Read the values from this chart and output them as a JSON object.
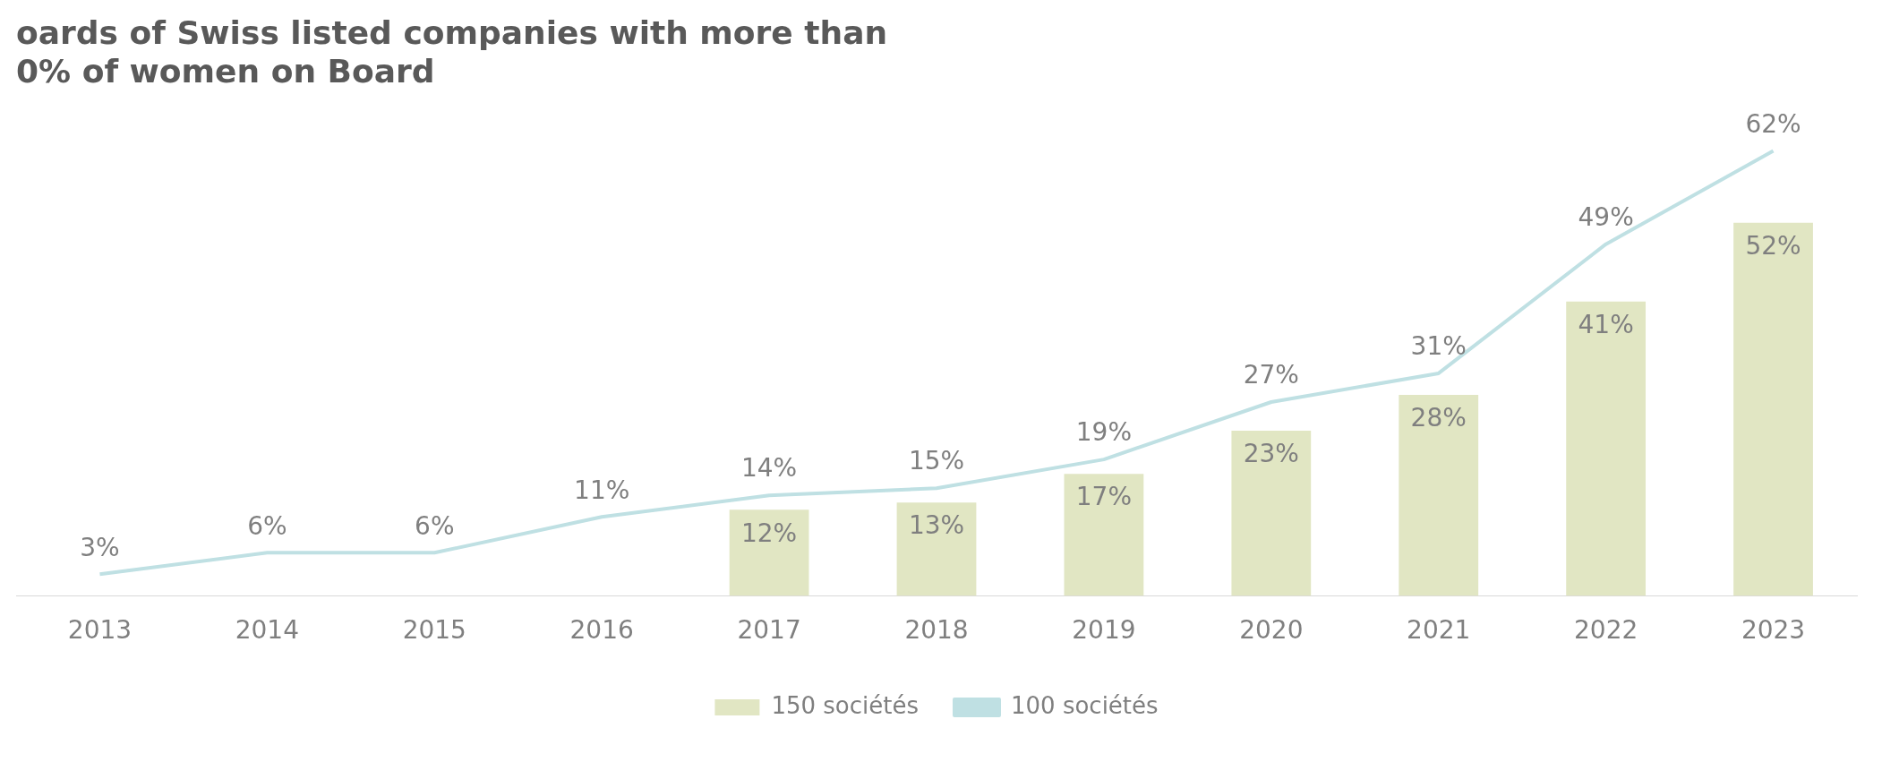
{
  "chart_data": {
    "type": "bar",
    "title": "oards of Swiss listed companies with more than\n0% of women on Board",
    "categories": [
      "2013",
      "2014",
      "2015",
      "2016",
      "2017",
      "2018",
      "2019",
      "2020",
      "2021",
      "2022",
      "2023"
    ],
    "series": [
      {
        "name": "150 sociétés",
        "color": "#e1e6c3",
        "values": [
          null,
          null,
          null,
          null,
          12,
          13,
          17,
          23,
          28,
          41,
          52
        ],
        "value_labels": [
          null,
          null,
          null,
          null,
          "12%",
          "13%",
          "17%",
          "23%",
          "28%",
          "41%",
          "52%"
        ]
      },
      {
        "name": "100 sociétés",
        "type": "line",
        "color": "#bfe0e3",
        "values": [
          3,
          6,
          6,
          11,
          14,
          15,
          19,
          27,
          31,
          49,
          62
        ],
        "value_labels": [
          "3%",
          "6%",
          "6%",
          "11%",
          "14%",
          "15%",
          "19%",
          "27%",
          "31%",
          "49%",
          "62%"
        ]
      }
    ],
    "grid": false,
    "legend": "bottom",
    "marker": "none"
  }
}
